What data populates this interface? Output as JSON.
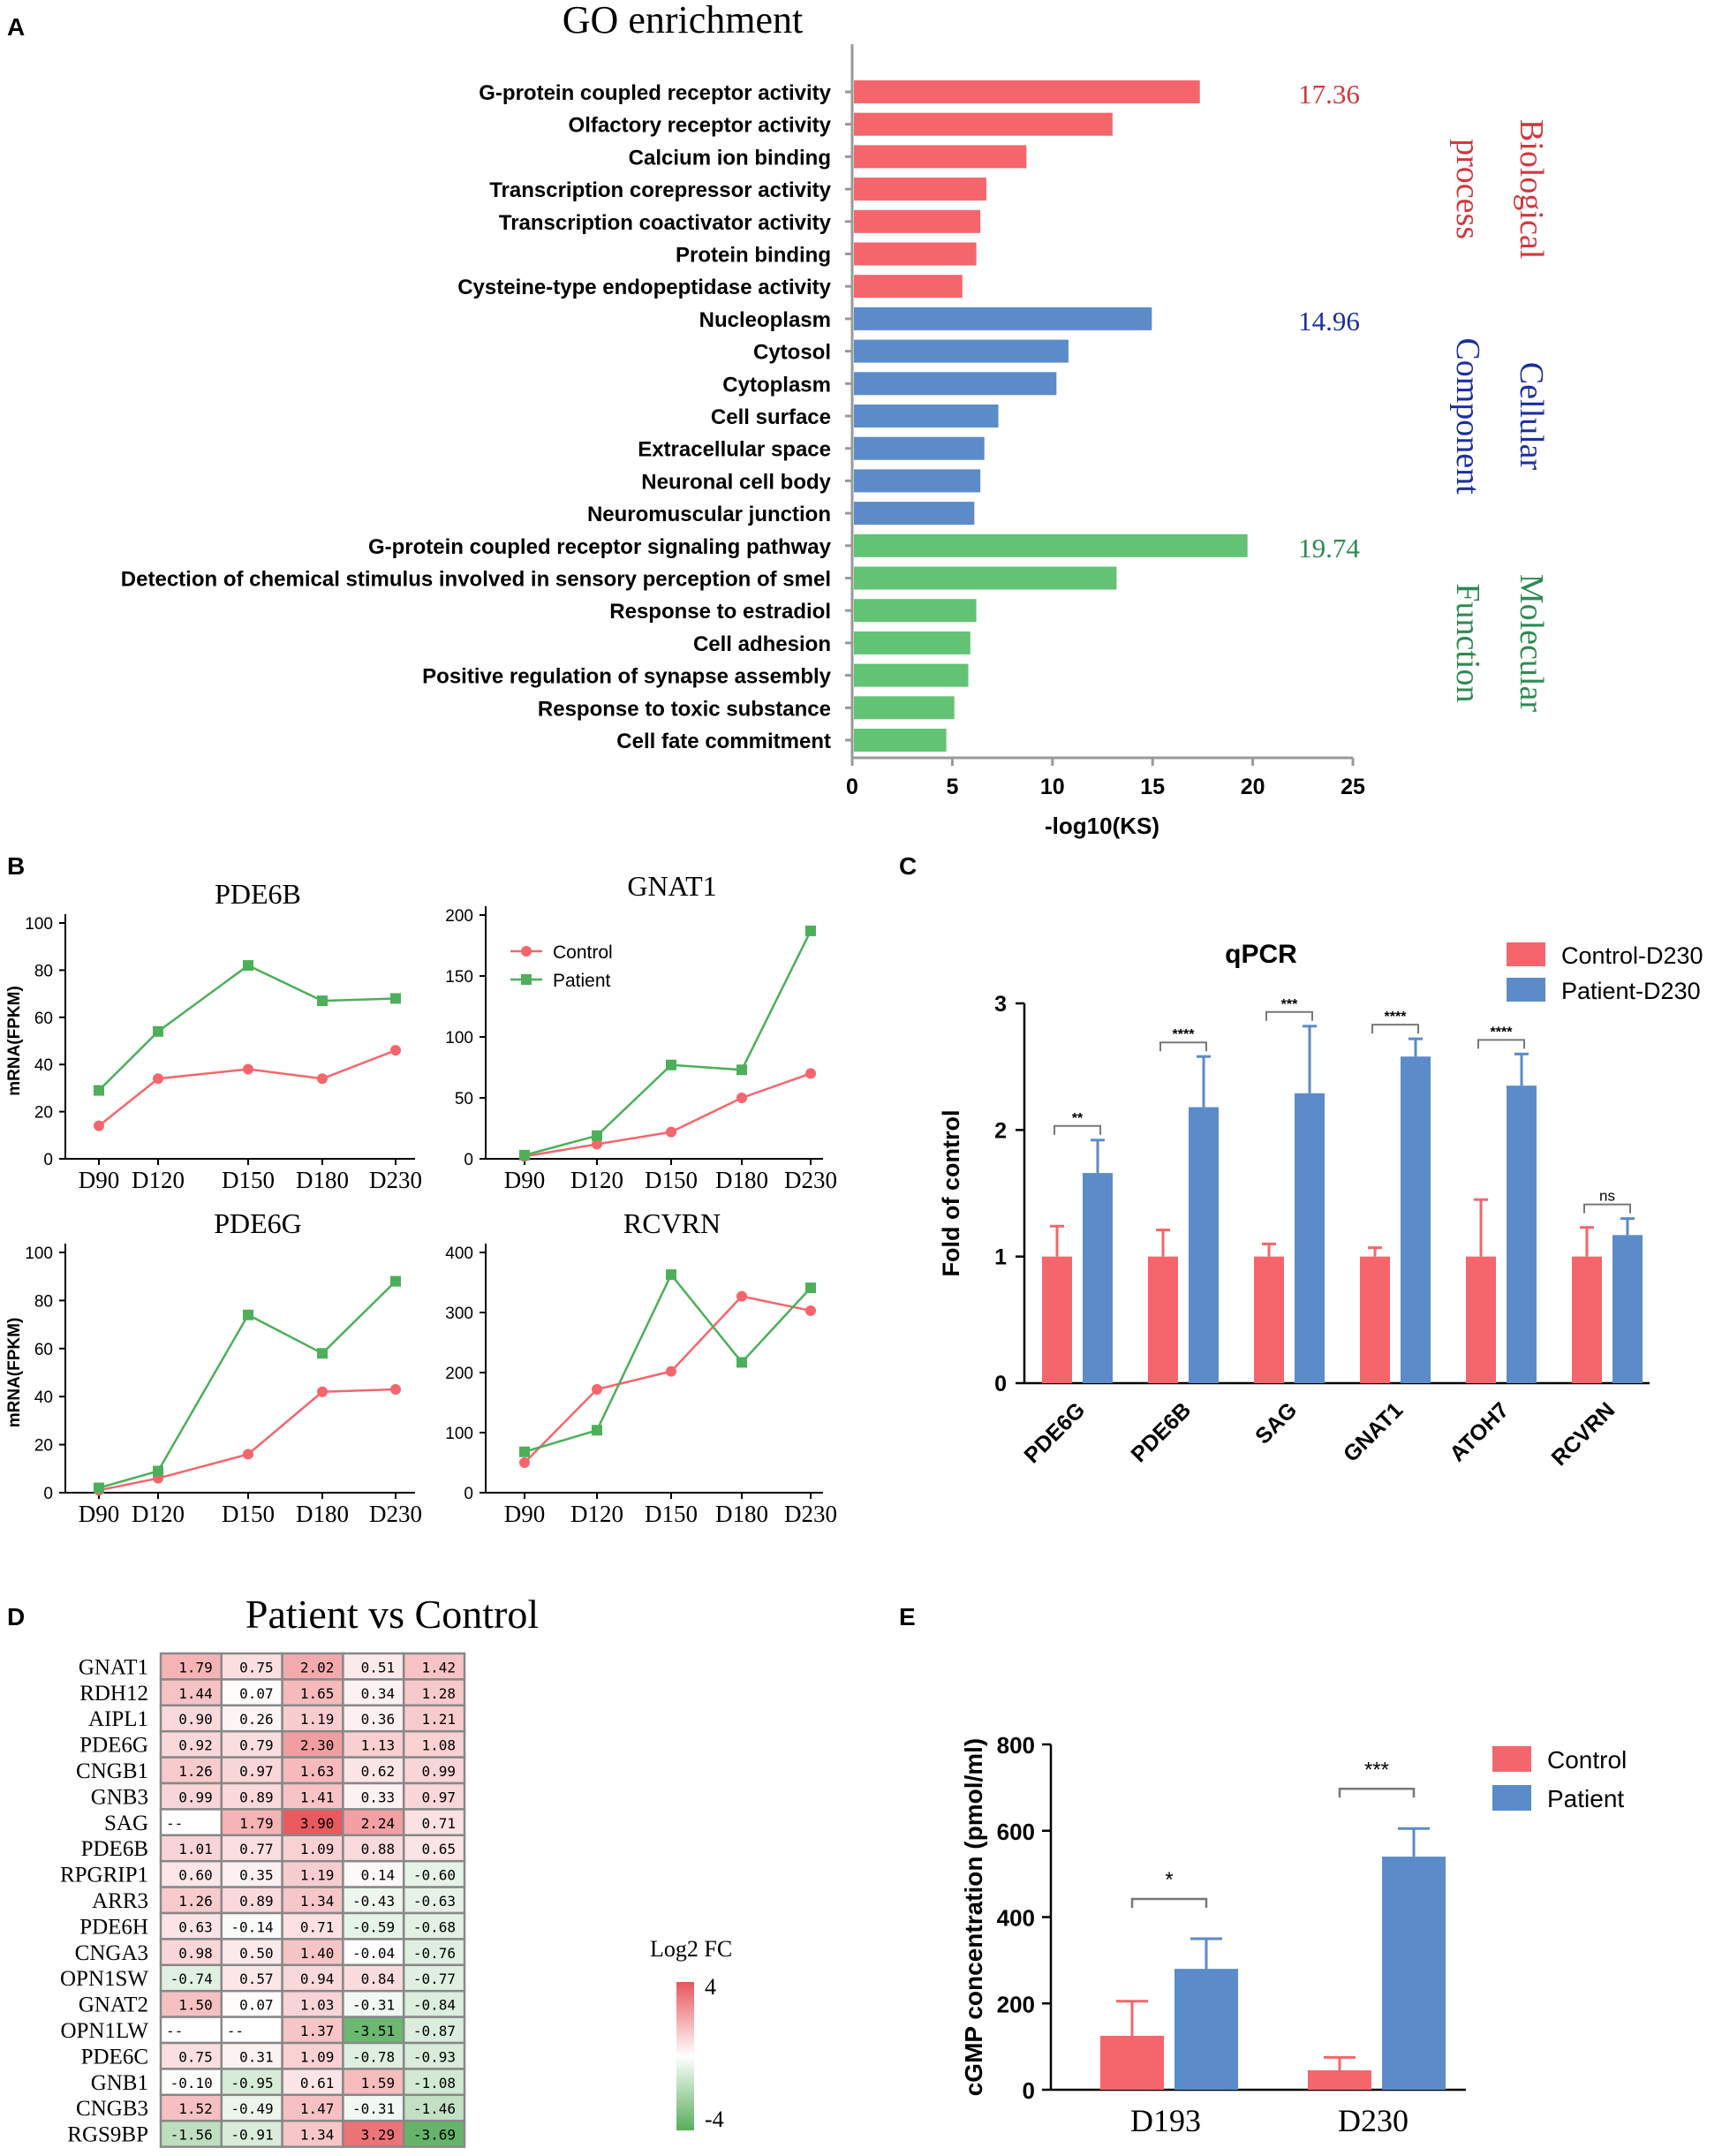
{
  "panels": {
    "a": "A",
    "b": "B",
    "c": "C",
    "d": "D",
    "e": "E"
  },
  "chart_data": [
    {
      "id": "A",
      "type": "bar",
      "orientation": "horizontal",
      "title": "GO enrichment",
      "xlabel": "-log10(KS)",
      "xlim": [
        0,
        25
      ],
      "xticks": [
        0,
        5,
        10,
        15,
        20,
        25
      ],
      "groups": [
        {
          "name": "Biological process",
          "line1": "Biological",
          "line2": "process",
          "color": "#f4666c",
          "label_color": "#d0383e",
          "max_label": "17.36",
          "categories": [
            "G-protein coupled receptor activity",
            "Olfactory receptor activity",
            "Calcium ion binding",
            "Transcription corepressor activity",
            "Transcription coactivator activity",
            "Protein binding",
            "Cysteine-type endopeptidase activity"
          ],
          "values": [
            17.36,
            13.0,
            8.7,
            6.7,
            6.4,
            6.2,
            5.5
          ]
        },
        {
          "name": "Cellular Component",
          "line1": "Cellular",
          "line2": "Component",
          "color": "#5b8bc9",
          "label_color": "#1d2f9e",
          "max_label": "14.96",
          "categories": [
            "Nucleoplasm",
            "Cytosol",
            "Cytoplasm",
            "Cell surface",
            "Extracellular space",
            "Neuronal cell body",
            "Neuromuscular junction"
          ],
          "values": [
            14.96,
            10.8,
            10.2,
            7.3,
            6.6,
            6.4,
            6.1
          ]
        },
        {
          "name": "Molecular Function",
          "line1": "Molecular",
          "line2": "Function",
          "color": "#62c374",
          "label_color": "#2f8a52",
          "max_label": "19.74",
          "categories": [
            "G-protein coupled receptor signaling pathway",
            "Detection of chemical stimulus involved in sensory perception of smel",
            "Response to estradiol",
            "Cell adhesion",
            "Positive regulation of synapse assembly",
            "Response to toxic substance",
            "Cell fate commitment"
          ],
          "values": [
            19.74,
            13.2,
            6.2,
            5.9,
            5.8,
            5.1,
            4.7
          ]
        }
      ]
    },
    {
      "id": "B",
      "type": "line",
      "ylabel": "mRNA(FPKM)",
      "categories": [
        "D90",
        "D120",
        "D150",
        "D180",
        "D230"
      ],
      "legend": [
        "Control",
        "Patient"
      ],
      "colors": {
        "control": "#f4666c",
        "patient": "#4daf5a"
      },
      "subplots": [
        {
          "title": "PDE6B",
          "ylim": [
            0,
            100
          ],
          "yticks": [
            0,
            20,
            40,
            60,
            80,
            100
          ],
          "control": [
            14,
            34,
            38,
            34,
            46
          ],
          "patient": [
            29,
            54,
            82,
            67,
            68
          ]
        },
        {
          "title": "GNAT1",
          "ylim": [
            0,
            200
          ],
          "yticks": [
            0,
            50,
            100,
            150,
            200
          ],
          "control": [
            2,
            12,
            22,
            50,
            70
          ],
          "patient": [
            3,
            19,
            77,
            73,
            187
          ]
        },
        {
          "title": "PDE6G",
          "ylim": [
            0,
            100
          ],
          "yticks": [
            0,
            20,
            40,
            60,
            80,
            100
          ],
          "control": [
            1,
            6,
            16,
            42,
            43
          ],
          "patient": [
            2,
            9,
            74,
            58,
            88
          ]
        },
        {
          "title": "RCVRN",
          "ylim": [
            0,
            400
          ],
          "yticks": [
            0,
            100,
            200,
            300,
            400
          ],
          "control": [
            50,
            172,
            202,
            327,
            303
          ],
          "patient": [
            68,
            104,
            363,
            217,
            341
          ]
        }
      ]
    },
    {
      "id": "C",
      "type": "bar",
      "title": "qPCR",
      "ylabel": "Fold of control",
      "ylim": [
        0,
        3
      ],
      "yticks": [
        0,
        1,
        2,
        3
      ],
      "categories": [
        "PDE6G",
        "PDE6B",
        "SAG",
        "GNAT1",
        "ATOH7",
        "RCVRN"
      ],
      "series": [
        {
          "name": "Control-D230",
          "color": "#f4666c",
          "values": [
            1,
            1,
            1,
            1,
            1,
            1
          ],
          "errors": [
            0.24,
            0.21,
            0.1,
            0.07,
            0.45,
            0.23
          ]
        },
        {
          "name": "Patient-D230",
          "color": "#5b8bc9",
          "values": [
            1.66,
            2.18,
            2.29,
            2.58,
            2.35,
            1.17
          ],
          "errors": [
            0.26,
            0.4,
            0.53,
            0.14,
            0.25,
            0.13
          ]
        }
      ],
      "significance": [
        "**",
        "****",
        "***",
        "****",
        "****",
        "ns"
      ]
    },
    {
      "id": "D",
      "type": "heatmap",
      "title": "Patient vs Control",
      "legend_title": "Log2 FC",
      "legend_max": "4",
      "legend_min": "-4",
      "rows": [
        "GNAT1",
        "RDH12",
        "AIPL1",
        "PDE6G",
        "CNGB1",
        "GNB3",
        "SAG",
        "PDE6B",
        "RPGRIP1",
        "ARR3",
        "PDE6H",
        "CNGA3",
        "OPN1SW",
        "GNAT2",
        "OPN1LW",
        "PDE6C",
        "GNB1",
        "CNGB3",
        "RGS9BP"
      ],
      "values": [
        [
          "1.79",
          "0.75",
          "2.02",
          "0.51",
          "1.42"
        ],
        [
          "1.44",
          "0.07",
          "1.65",
          "0.34",
          "1.28"
        ],
        [
          "0.90",
          "0.26",
          "1.19",
          "0.36",
          "1.21"
        ],
        [
          "0.92",
          "0.79",
          "2.30",
          "1.13",
          "1.08"
        ],
        [
          "1.26",
          "0.97",
          "1.63",
          "0.62",
          "0.99"
        ],
        [
          "0.99",
          "0.89",
          "1.41",
          "0.33",
          "0.97"
        ],
        [
          "--",
          "1.79",
          "3.90",
          "2.24",
          "0.71"
        ],
        [
          "1.01",
          "0.77",
          "1.09",
          "0.88",
          "0.65"
        ],
        [
          "0.60",
          "0.35",
          "1.19",
          "0.14",
          "-0.60"
        ],
        [
          "1.26",
          "0.89",
          "1.34",
          "-0.43",
          "-0.63"
        ],
        [
          "0.63",
          "-0.14",
          "0.71",
          "-0.59",
          "-0.68"
        ],
        [
          "0.98",
          "0.50",
          "1.40",
          "-0.04",
          "-0.76"
        ],
        [
          "-0.74",
          "0.57",
          "0.94",
          "0.84",
          "-0.77"
        ],
        [
          "1.50",
          "0.07",
          "1.03",
          "-0.31",
          "-0.84"
        ],
        [
          "--",
          "--",
          "1.37",
          "-3.51",
          "-0.87"
        ],
        [
          "0.75",
          "0.31",
          "1.09",
          "-0.78",
          "-0.93"
        ],
        [
          "-0.10",
          "-0.95",
          "0.61",
          "1.59",
          "-1.08"
        ],
        [
          "1.52",
          "-0.49",
          "1.47",
          "-0.31",
          "-1.46"
        ],
        [
          "-1.56",
          "-0.91",
          "1.34",
          "3.29",
          "-3.69"
        ]
      ]
    },
    {
      "id": "E",
      "type": "bar",
      "ylabel": "cGMP concentration (pmol/ml)",
      "ylim": [
        0,
        800
      ],
      "yticks": [
        0,
        200,
        400,
        600,
        800
      ],
      "categories": [
        "D193",
        "D230"
      ],
      "series": [
        {
          "name": "Control",
          "color": "#f4666c",
          "values": [
            125,
            45
          ],
          "errors": [
            80,
            30
          ]
        },
        {
          "name": "Patient",
          "color": "#5b8bc9",
          "values": [
            280,
            540
          ],
          "errors": [
            70,
            65
          ]
        }
      ],
      "significance": [
        "*",
        "***"
      ]
    }
  ]
}
